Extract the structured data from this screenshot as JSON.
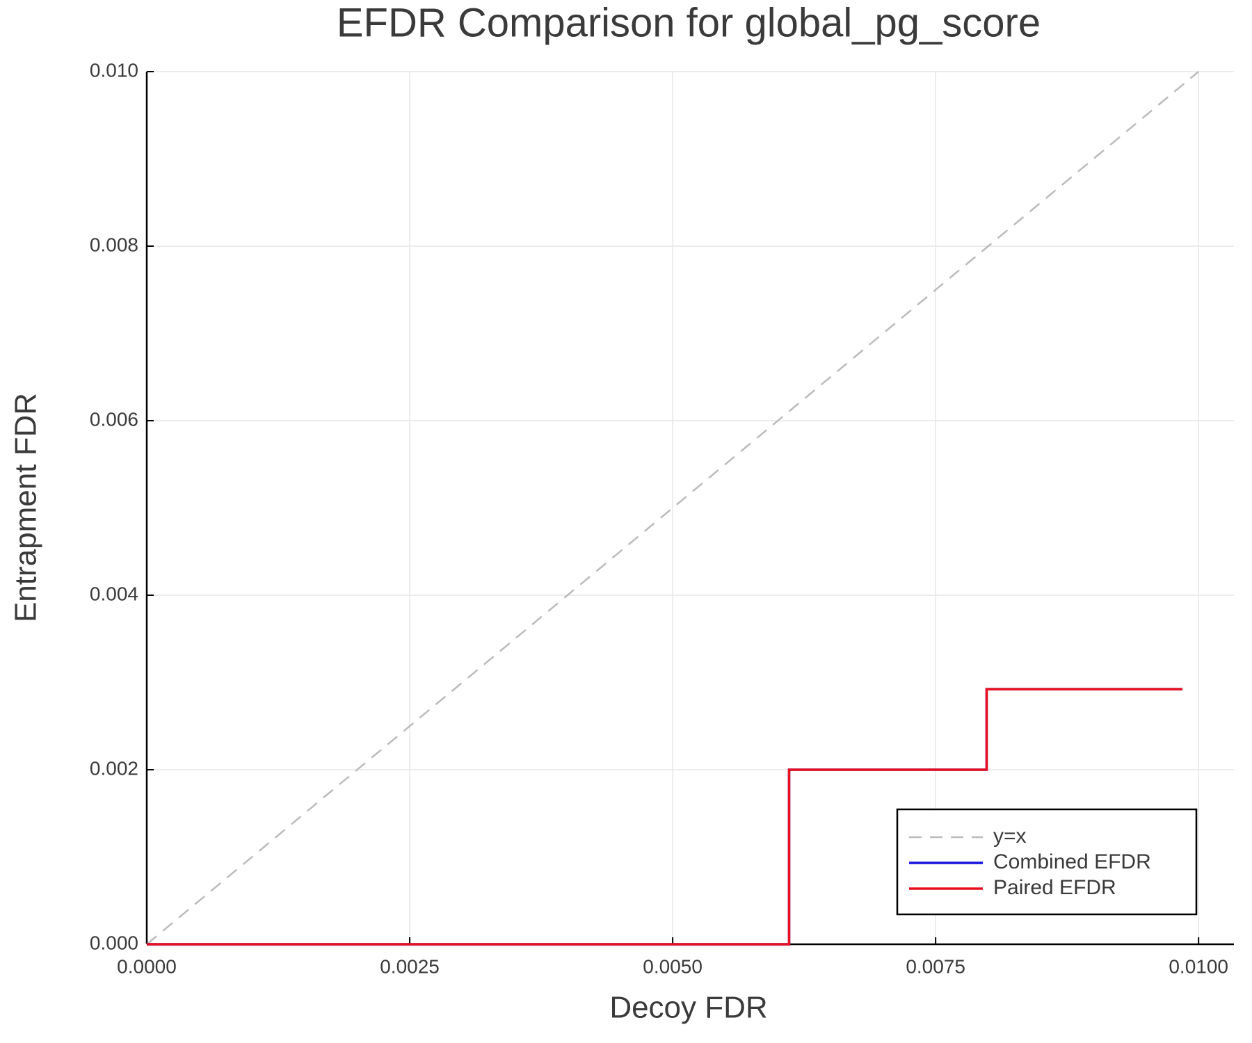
{
  "chart_data": {
    "type": "line",
    "title": "EFDR Comparison for global_pg_score",
    "x_label": "Decoy FDR",
    "y_label": "Entrapment FDR",
    "xlim": [
      0,
      0.010336
    ],
    "ylim": [
      0,
      0.01
    ],
    "xticks": [
      {
        "value": 0,
        "label": "0.0000"
      },
      {
        "value": 0.0025,
        "label": "0.0025"
      },
      {
        "value": 0.005,
        "label": "0.0050"
      },
      {
        "value": 0.0075,
        "label": "0.0075"
      },
      {
        "value": 0.01,
        "label": "0.0100"
      }
    ],
    "yticks": [
      {
        "value": 0,
        "label": "0.000"
      },
      {
        "value": 0.002,
        "label": "0.002"
      },
      {
        "value": 0.004,
        "label": "0.004"
      },
      {
        "value": 0.006,
        "label": "0.006"
      },
      {
        "value": 0.008,
        "label": "0.008"
      },
      {
        "value": 0.01,
        "label": "0.010"
      }
    ],
    "grid": true,
    "legend": "lower right",
    "series": [
      {
        "name": "y=x",
        "color": "#bbbbbb",
        "dashed": true,
        "x": [
          0,
          0.01
        ],
        "values": [
          0,
          0.01
        ]
      },
      {
        "name": "Combined EFDR",
        "color": "#1414e0",
        "dashed": false,
        "x": [
          0,
          0.006107,
          0.006107,
          0.007985,
          0.007985,
          0.009847
        ],
        "values": [
          0,
          0,
          0.002,
          0.002,
          0.002923,
          0.002923
        ]
      },
      {
        "name": "Paired EFDR",
        "color": "#e8101e",
        "dashed": false,
        "x": [
          0,
          0.006107,
          0.006107,
          0.007985,
          0.007985,
          0.009847
        ],
        "values": [
          0,
          0,
          0.002,
          0.002,
          0.002923,
          0.002923
        ]
      }
    ]
  }
}
